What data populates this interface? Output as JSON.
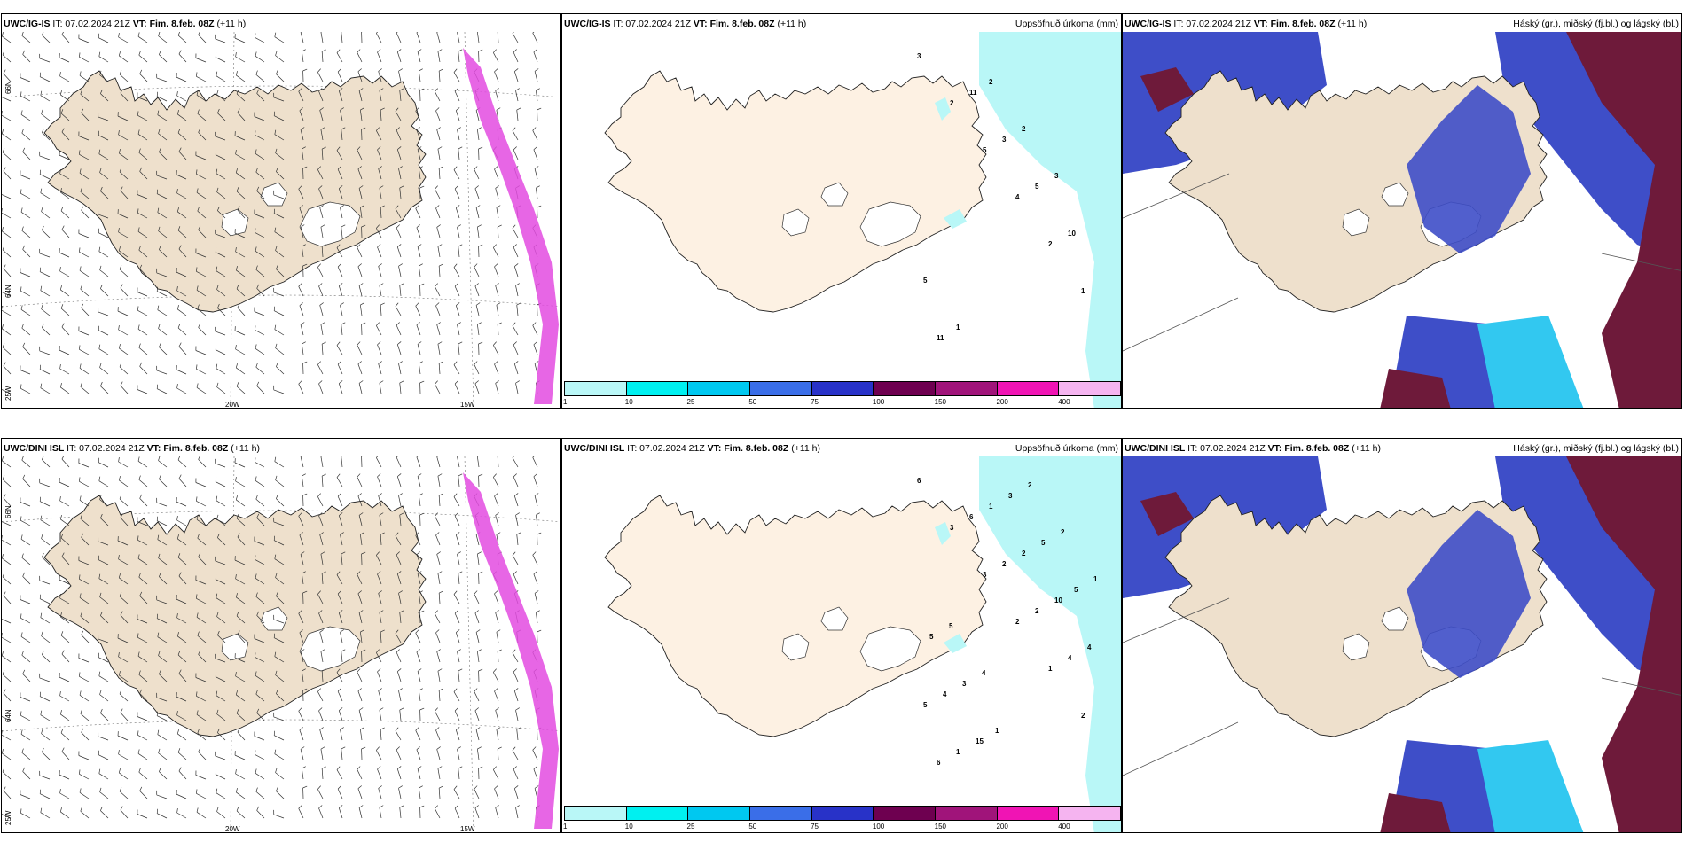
{
  "panels": [
    {
      "model": "UWC/IG-IS",
      "it": "IT: 07.02.2024 21Z",
      "vt_label": "VT:",
      "vt": "Fim. 8.feb. 08Z",
      "offset": "(+11 h)",
      "right_title": ""
    },
    {
      "model": "UWC/IG-IS",
      "it": "IT: 07.02.2024 21Z",
      "vt_label": "VT:",
      "vt": "Fim. 8.feb. 08Z",
      "offset": "(+11 h)",
      "right_title": "Uppsöfnuð úrkoma (mm)"
    },
    {
      "model": "UWC/IG-IS",
      "it": "IT: 07.02.2024 21Z",
      "vt_label": "VT:",
      "vt": "Fim. 8.feb. 08Z",
      "offset": "(+11 h)",
      "right_title": "Háský (gr.), miðský (fj.bl.) og lágský (bl.)"
    },
    {
      "model": "UWC/DINI ISL",
      "it": "IT: 07.02.2024 21Z",
      "vt_label": "VT:",
      "vt": "Fim. 8.feb. 08Z",
      "offset": "(+11 h)",
      "right_title": ""
    },
    {
      "model": "UWC/DINI ISL",
      "it": "IT: 07.02.2024 21Z",
      "vt_label": "VT:",
      "vt": "Fim. 8.feb. 08Z",
      "offset": "(+11 h)",
      "right_title": "Uppsöfnuð úrkoma (mm)"
    },
    {
      "model": "UWC/DINI ISL",
      "it": "IT: 07.02.2024 21Z",
      "vt_label": "VT:",
      "vt": "Fim. 8.feb. 08Z",
      "offset": "(+11 h)",
      "right_title": "Háský (gr.), miðský (fj.bl.) og lágský (bl.)"
    }
  ],
  "axis_labels": {
    "lat_66": "66N",
    "lat_64": "64N",
    "lat_25w": "25W",
    "lon_20w": "20W",
    "lon_15w": "15W"
  },
  "colorbar": {
    "labels": [
      "1",
      "10",
      "25",
      "50",
      "75",
      "100",
      "150",
      "200",
      "400"
    ],
    "colors": [
      "#b9f7f7",
      "#00f0f0",
      "#00c8f0",
      "#3a6ee8",
      "#2832c8",
      "#6e0050",
      "#a0147a",
      "#f014b4",
      "#f5b4f0"
    ]
  },
  "precip_numbers_top": [
    "3",
    "2",
    "5",
    "4",
    "2",
    "1",
    "11",
    "11",
    "3",
    "5",
    "10",
    "5",
    "1",
    "2",
    "2",
    "3"
  ],
  "precip_numbers_bottom": [
    "6",
    "3",
    "3",
    "2",
    "1",
    "2",
    "6",
    "6",
    "2",
    "2",
    "4",
    "5",
    "1",
    "1",
    "2",
    "10",
    "4",
    "4",
    "15",
    "3",
    "5",
    "5",
    "5",
    "3",
    "1",
    "2",
    "2",
    "1",
    "5",
    "4"
  ],
  "colors": {
    "land": "#eee0cc",
    "land_precip": "#fdf1e3",
    "sea_precip": "#b9f7f7",
    "wind_band": "#e34be0",
    "cloud_high": "#6e1a3a",
    "cloud_mid": "#3e4ec8",
    "cloud_low": "#32c8f0"
  }
}
